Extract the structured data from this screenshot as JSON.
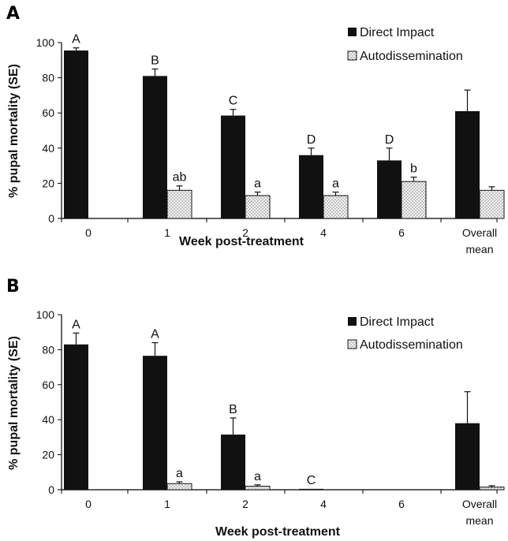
{
  "chart_data": [
    {
      "panel_label": "A",
      "type": "bar",
      "categories": [
        "0",
        "1",
        "2",
        "4",
        "6",
        "Overall mean"
      ],
      "series": [
        {
          "name": "Direct Impact",
          "values": [
            95.5,
            81,
            58.5,
            36,
            33,
            61
          ],
          "errors": [
            1.5,
            4,
            3.5,
            4,
            7,
            12
          ],
          "labels": [
            "A",
            "B",
            "C",
            "D",
            "D",
            ""
          ]
        },
        {
          "name": "Autodissemination",
          "values": [
            null,
            16,
            13,
            13,
            21,
            16
          ],
          "errors": [
            null,
            2.5,
            2,
            2,
            2.5,
            2
          ],
          "labels": [
            "",
            "ab",
            "a",
            "a",
            "b",
            ""
          ]
        }
      ],
      "xlabel": "Week post-treatment",
      "ylabel": "% pupal mortality (SE)",
      "ylim": [
        0,
        100
      ],
      "yticks": [
        0,
        20,
        40,
        60,
        80,
        100
      ],
      "legend_position": "top-right"
    },
    {
      "panel_label": "B",
      "type": "bar",
      "categories": [
        "0",
        "1",
        "2",
        "4",
        "6",
        "Overall mean"
      ],
      "series": [
        {
          "name": "Direct Impact",
          "values": [
            83,
            76.5,
            31.5,
            0.5,
            0,
            38
          ],
          "errors": [
            6.5,
            7.5,
            9.5,
            0,
            0,
            18
          ],
          "labels": [
            "A",
            "A",
            "B",
            "C",
            "",
            ""
          ]
        },
        {
          "name": "Autodissemination",
          "values": [
            null,
            3.5,
            2,
            0,
            0,
            1.5
          ],
          "errors": [
            null,
            1,
            0.8,
            0,
            0,
            0.8
          ],
          "labels": [
            "",
            "a",
            "a",
            "",
            "",
            ""
          ]
        }
      ],
      "xlabel": "Week post-treatment",
      "ylabel": "% pupal mortality (SE)",
      "ylim": [
        0,
        100
      ],
      "yticks": [
        0,
        20,
        40,
        60,
        80,
        100
      ],
      "legend_position": "top-right"
    }
  ],
  "colors": {
    "direct": "#111111",
    "auto_fill": "#f2f2f2",
    "auto_dot": "#7a7a7a",
    "axis": "#000000"
  }
}
